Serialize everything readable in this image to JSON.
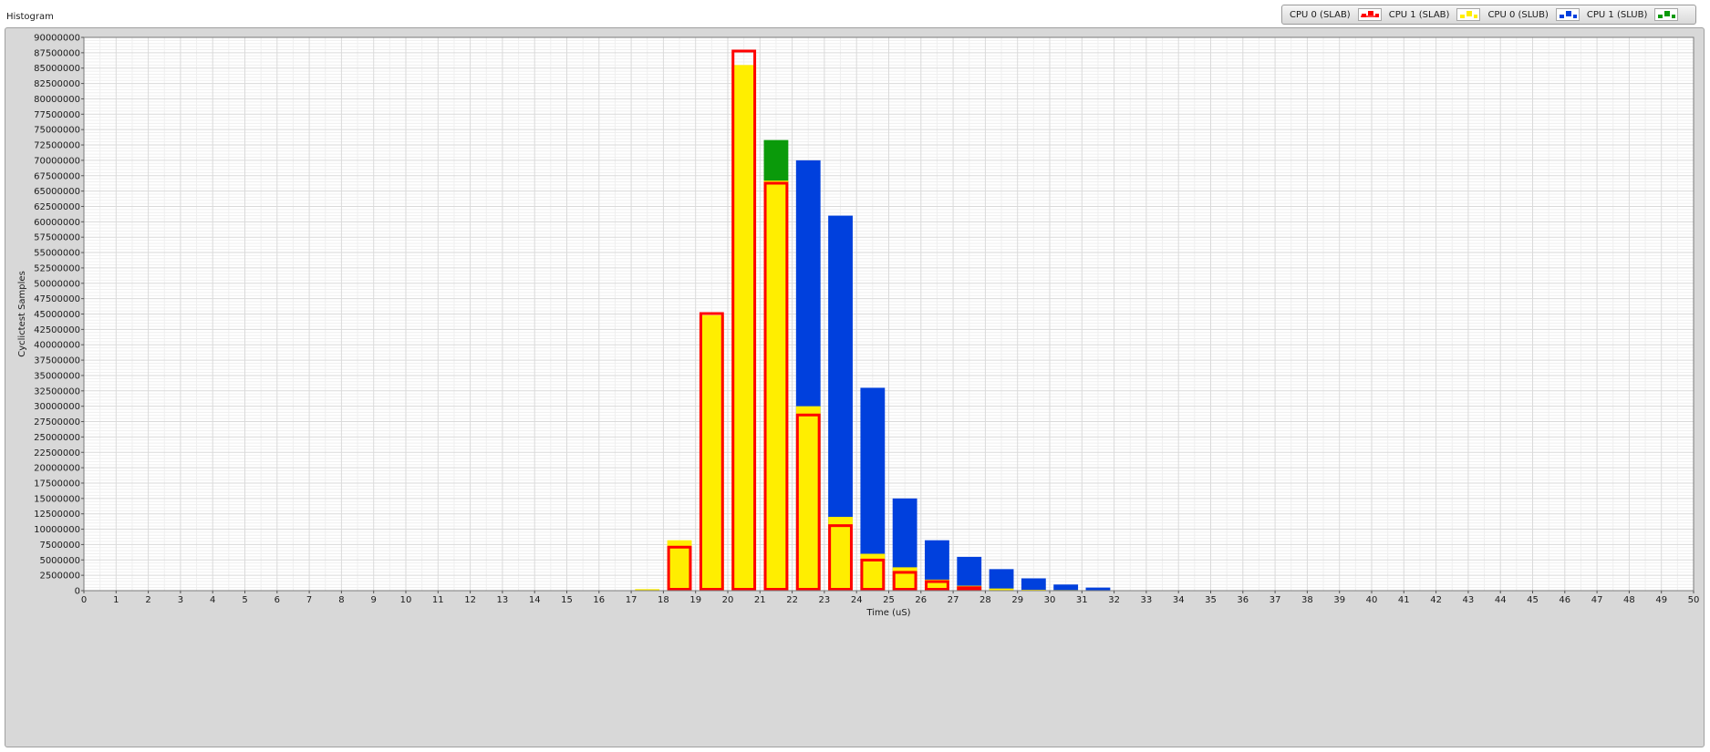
{
  "panel": {
    "title": "Histogram"
  },
  "legend": [
    {
      "label": "CPU 0 (SLAB)",
      "color": "#ff0000",
      "style": "outline"
    },
    {
      "label": "CPU 1 (SLAB)",
      "color": "#ffee00",
      "style": "fill"
    },
    {
      "label": "CPU 0 (SLUB)",
      "color": "#0040dd",
      "style": "fill"
    },
    {
      "label": "CPU 1 (SLUB)",
      "color": "#0a9a0a",
      "style": "fill"
    }
  ],
  "chart_data": {
    "type": "bar",
    "title": "",
    "xlabel": "Time (uS)",
    "ylabel": "Cyclictest Samples",
    "xlim": [
      0,
      50
    ],
    "ylim": [
      0,
      90000000
    ],
    "ytick_step": 2500000,
    "grid": true,
    "legend_position": "top-right",
    "x": [
      0,
      1,
      2,
      3,
      4,
      5,
      6,
      7,
      8,
      9,
      10,
      11,
      12,
      13,
      14,
      15,
      16,
      17,
      18,
      19,
      20,
      21,
      22,
      23,
      24,
      25,
      26,
      27,
      28,
      29,
      30,
      31,
      32,
      33,
      34,
      35,
      36,
      37,
      38,
      39,
      40,
      41,
      42,
      43,
      44,
      45,
      46,
      47,
      48,
      49
    ],
    "series": [
      {
        "name": "CPU 1 (SLUB)",
        "color": "#0a9a0a",
        "style": "fill",
        "values": [
          0,
          0,
          0,
          0,
          0,
          0,
          0,
          0,
          0,
          0,
          0,
          0,
          0,
          0,
          0,
          0,
          0,
          0,
          0,
          0,
          0,
          73300000,
          0,
          0,
          0,
          0,
          0,
          0,
          0,
          0,
          0,
          0,
          0,
          0,
          0,
          0,
          0,
          0,
          0,
          0,
          0,
          0,
          0,
          0,
          0,
          0,
          0,
          0,
          0,
          0
        ]
      },
      {
        "name": "CPU 0 (SLUB)",
        "color": "#0040dd",
        "style": "fill",
        "values": [
          0,
          0,
          0,
          0,
          0,
          0,
          0,
          0,
          0,
          0,
          0,
          0,
          0,
          0,
          0,
          0,
          0,
          0,
          0,
          0,
          0,
          0,
          70000000,
          61000000,
          33000000,
          15000000,
          8200000,
          5500000,
          3500000,
          2000000,
          1000000,
          500000,
          0,
          0,
          0,
          0,
          0,
          0,
          0,
          0,
          0,
          0,
          0,
          0,
          0,
          0,
          0,
          0,
          0,
          0
        ]
      },
      {
        "name": "CPU 1 (SLAB)",
        "color": "#ffee00",
        "style": "fill",
        "values": [
          0,
          0,
          0,
          0,
          0,
          0,
          0,
          0,
          0,
          0,
          0,
          0,
          0,
          0,
          0,
          0,
          0,
          250000,
          8200000,
          44800000,
          85500000,
          66700000,
          30000000,
          12000000,
          6000000,
          3800000,
          1800000,
          800000,
          350000,
          150000,
          100000,
          50000,
          0,
          0,
          0,
          0,
          0,
          0,
          0,
          0,
          0,
          0,
          0,
          0,
          0,
          0,
          0,
          0,
          0,
          0
        ]
      },
      {
        "name": "CPU 0 (SLAB)",
        "color": "#ff0000",
        "style": "outline",
        "values": [
          0,
          0,
          0,
          0,
          0,
          0,
          0,
          0,
          0,
          0,
          0,
          0,
          0,
          0,
          0,
          0,
          0,
          300000,
          7300000,
          45300000,
          88000000,
          66500000,
          28800000,
          10800000,
          5200000,
          3200000,
          1700000,
          700000,
          300000,
          150000,
          80000,
          40000,
          0,
          0,
          0,
          0,
          0,
          0,
          0,
          0,
          0,
          0,
          0,
          0,
          0,
          0,
          0,
          0,
          0,
          0
        ]
      }
    ]
  }
}
